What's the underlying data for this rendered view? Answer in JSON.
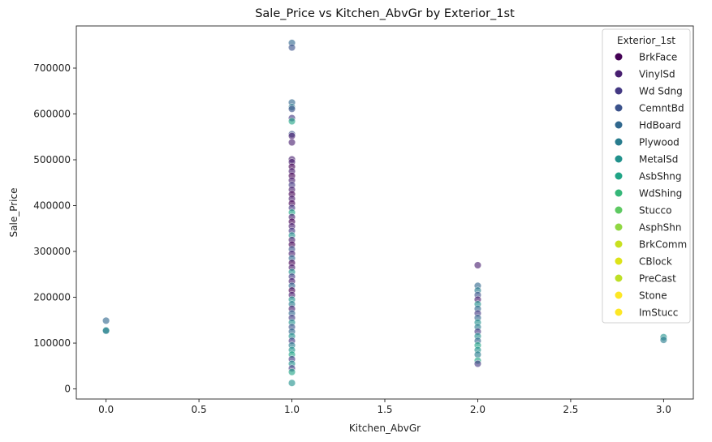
{
  "chart_data": {
    "type": "scatter",
    "title": "Sale_Price vs Kitchen_AbvGr by Exterior_1st",
    "xlabel": "Kitchen_AbvGr",
    "ylabel": "Sale_Price",
    "xlim": [
      -0.16,
      3.16
    ],
    "ylim": [
      -22000,
      792000
    ],
    "xticks": [
      0.0,
      0.5,
      1.0,
      1.5,
      2.0,
      2.5,
      3.0
    ],
    "xtick_labels": [
      "0.0",
      "0.5",
      "1.0",
      "1.5",
      "2.0",
      "2.5",
      "3.0"
    ],
    "yticks": [
      0,
      100000,
      200000,
      300000,
      400000,
      500000,
      600000,
      700000
    ],
    "ytick_labels": [
      "0",
      "100000",
      "200000",
      "300000",
      "400000",
      "500000",
      "600000",
      "700000"
    ],
    "grid": false,
    "legend": {
      "title": "Exterior_1st",
      "placement": "top-right",
      "entries": [
        {
          "name": "BrkFace",
          "color": "#440154"
        },
        {
          "name": "VinylSd",
          "color": "#481f70"
        },
        {
          "name": "Wd Sdng",
          "color": "#443983"
        },
        {
          "name": "CemntBd",
          "color": "#3b528b"
        },
        {
          "name": "HdBoard",
          "color": "#31688e"
        },
        {
          "name": "Plywood",
          "color": "#287c8e"
        },
        {
          "name": "MetalSd",
          "color": "#21918c"
        },
        {
          "name": "AsbShng",
          "color": "#20a486"
        },
        {
          "name": "WdShing",
          "color": "#35b779"
        },
        {
          "name": "Stucco",
          "color": "#5ec962"
        },
        {
          "name": "AsphShn",
          "color": "#90d743"
        },
        {
          "name": "BrkComm",
          "color": "#c8e020"
        },
        {
          "name": "CBlock",
          "color": "#dde318"
        },
        {
          "name": "PreCast",
          "color": "#bddf26"
        },
        {
          "name": "Stone",
          "color": "#fde725"
        },
        {
          "name": "ImStucc",
          "color": "#fde725"
        }
      ]
    },
    "series": [
      {
        "x": 0,
        "y": 149000,
        "category": "HdBoard"
      },
      {
        "x": 0,
        "y": 128000,
        "category": "MetalSd"
      },
      {
        "x": 0,
        "y": 127000,
        "category": "Plywood"
      },
      {
        "x": 1,
        "y": 755000,
        "category": "HdBoard"
      },
      {
        "x": 1,
        "y": 745000,
        "category": "CemntBd"
      },
      {
        "x": 1,
        "y": 625000,
        "category": "HdBoard"
      },
      {
        "x": 1,
        "y": 615000,
        "category": "Plywood"
      },
      {
        "x": 1,
        "y": 611000,
        "category": "CemntBd"
      },
      {
        "x": 1,
        "y": 591000,
        "category": "Wd Sdng"
      },
      {
        "x": 1,
        "y": 584000,
        "category": "AsbShng"
      },
      {
        "x": 1,
        "y": 556000,
        "category": "CemntBd"
      },
      {
        "x": 1,
        "y": 552000,
        "category": "VinylSd"
      },
      {
        "x": 1,
        "y": 538000,
        "category": "VinylSd"
      },
      {
        "x": 1,
        "y": 501000,
        "category": "VinylSd"
      },
      {
        "x": 1,
        "y": 495000,
        "category": "VinylSd"
      },
      {
        "x": 1,
        "y": 485000,
        "category": "BrkFace"
      },
      {
        "x": 1,
        "y": 475000,
        "category": "VinylSd"
      },
      {
        "x": 1,
        "y": 465000,
        "category": "BrkFace"
      },
      {
        "x": 1,
        "y": 455000,
        "category": "VinylSd"
      },
      {
        "x": 1,
        "y": 445000,
        "category": "Wd Sdng"
      },
      {
        "x": 1,
        "y": 435000,
        "category": "VinylSd"
      },
      {
        "x": 1,
        "y": 425000,
        "category": "BrkFace"
      },
      {
        "x": 1,
        "y": 415000,
        "category": "VinylSd"
      },
      {
        "x": 1,
        "y": 405000,
        "category": "BrkFace"
      },
      {
        "x": 1,
        "y": 395000,
        "category": "Wd Sdng"
      },
      {
        "x": 1,
        "y": 385000,
        "category": "AsbShng"
      },
      {
        "x": 1,
        "y": 375000,
        "category": "VinylSd"
      },
      {
        "x": 1,
        "y": 365000,
        "category": "BrkFace"
      },
      {
        "x": 1,
        "y": 355000,
        "category": "VinylSd"
      },
      {
        "x": 1,
        "y": 345000,
        "category": "Wd Sdng"
      },
      {
        "x": 1,
        "y": 335000,
        "category": "MetalSd"
      },
      {
        "x": 1,
        "y": 325000,
        "category": "VinylSd"
      },
      {
        "x": 1,
        "y": 315000,
        "category": "BrkFace"
      },
      {
        "x": 1,
        "y": 305000,
        "category": "CemntBd"
      },
      {
        "x": 1,
        "y": 295000,
        "category": "VinylSd"
      },
      {
        "x": 1,
        "y": 285000,
        "category": "HdBoard"
      },
      {
        "x": 1,
        "y": 275000,
        "category": "BrkFace"
      },
      {
        "x": 1,
        "y": 265000,
        "category": "VinylSd"
      },
      {
        "x": 1,
        "y": 255000,
        "category": "MetalSd"
      },
      {
        "x": 1,
        "y": 245000,
        "category": "Wd Sdng"
      },
      {
        "x": 1,
        "y": 235000,
        "category": "VinylSd"
      },
      {
        "x": 1,
        "y": 225000,
        "category": "HdBoard"
      },
      {
        "x": 1,
        "y": 215000,
        "category": "BrkFace"
      },
      {
        "x": 1,
        "y": 205000,
        "category": "VinylSd"
      },
      {
        "x": 1,
        "y": 195000,
        "category": "MetalSd"
      },
      {
        "x": 1,
        "y": 185000,
        "category": "Plywood"
      },
      {
        "x": 1,
        "y": 175000,
        "category": "VinylSd"
      },
      {
        "x": 1,
        "y": 165000,
        "category": "HdBoard"
      },
      {
        "x": 1,
        "y": 155000,
        "category": "Wd Sdng"
      },
      {
        "x": 1,
        "y": 145000,
        "category": "MetalSd"
      },
      {
        "x": 1,
        "y": 135000,
        "category": "CemntBd"
      },
      {
        "x": 1,
        "y": 125000,
        "category": "HdBoard"
      },
      {
        "x": 1,
        "y": 115000,
        "category": "MetalSd"
      },
      {
        "x": 1,
        "y": 105000,
        "category": "Wd Sdng"
      },
      {
        "x": 1,
        "y": 95000,
        "category": "Plywood"
      },
      {
        "x": 1,
        "y": 85000,
        "category": "MetalSd"
      },
      {
        "x": 1,
        "y": 75000,
        "category": "AsbShng"
      },
      {
        "x": 1,
        "y": 65000,
        "category": "Wd Sdng"
      },
      {
        "x": 1,
        "y": 55000,
        "category": "MetalSd"
      },
      {
        "x": 1,
        "y": 45000,
        "category": "Wd Sdng"
      },
      {
        "x": 1,
        "y": 37000,
        "category": "AsbShng"
      },
      {
        "x": 1,
        "y": 13000,
        "category": "MetalSd"
      },
      {
        "x": 2,
        "y": 270000,
        "category": "VinylSd"
      },
      {
        "x": 2,
        "y": 225000,
        "category": "HdBoard"
      },
      {
        "x": 2,
        "y": 215000,
        "category": "Plywood"
      },
      {
        "x": 2,
        "y": 205000,
        "category": "CemntBd"
      },
      {
        "x": 2,
        "y": 195000,
        "category": "VinylSd"
      },
      {
        "x": 2,
        "y": 185000,
        "category": "MetalSd"
      },
      {
        "x": 2,
        "y": 175000,
        "category": "HdBoard"
      },
      {
        "x": 2,
        "y": 165000,
        "category": "Wd Sdng"
      },
      {
        "x": 2,
        "y": 155000,
        "category": "HdBoard"
      },
      {
        "x": 2,
        "y": 145000,
        "category": "MetalSd"
      },
      {
        "x": 2,
        "y": 135000,
        "category": "Plywood"
      },
      {
        "x": 2,
        "y": 125000,
        "category": "Wd Sdng"
      },
      {
        "x": 2,
        "y": 115000,
        "category": "MetalSd"
      },
      {
        "x": 2,
        "y": 105000,
        "category": "HdBoard"
      },
      {
        "x": 2,
        "y": 95000,
        "category": "AsbShng"
      },
      {
        "x": 2,
        "y": 85000,
        "category": "MetalSd"
      },
      {
        "x": 2,
        "y": 75000,
        "category": "Plywood"
      },
      {
        "x": 2,
        "y": 62000,
        "category": "AsbShng"
      },
      {
        "x": 2,
        "y": 55000,
        "category": "Wd Sdng"
      },
      {
        "x": 3,
        "y": 113000,
        "category": "MetalSd"
      },
      {
        "x": 3,
        "y": 107000,
        "category": "Plywood"
      }
    ]
  }
}
